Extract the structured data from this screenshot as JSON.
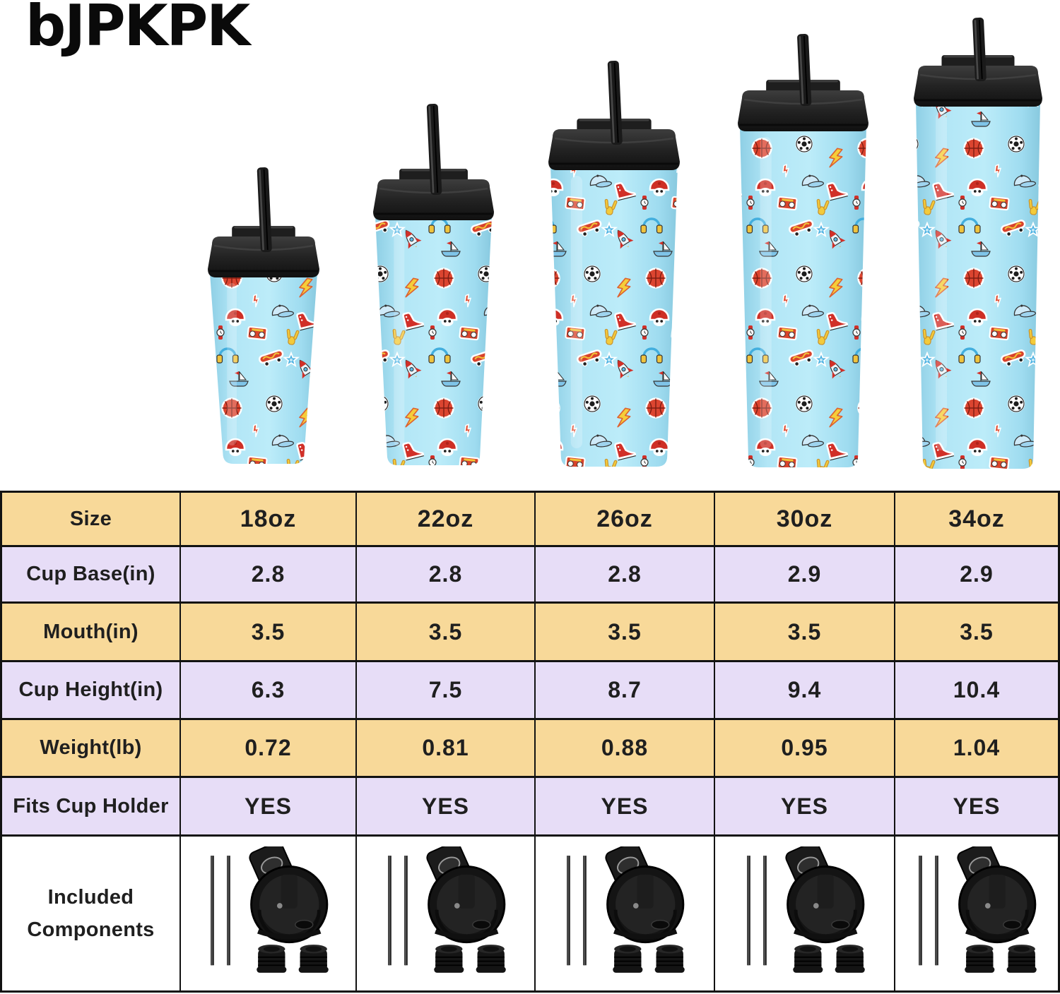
{
  "brand": {
    "logo_text": "bJPKPK"
  },
  "hero": {
    "tumblers": [
      {
        "name": "tumbler-18oz"
      },
      {
        "name": "tumbler-22oz"
      },
      {
        "name": "tumbler-26oz"
      },
      {
        "name": "tumbler-30oz"
      },
      {
        "name": "tumbler-34oz"
      }
    ],
    "colors": {
      "body_blue": "#a6e0f2",
      "lid_black": "#232323",
      "straw_black": "#1a1a1a"
    }
  },
  "spec_table": {
    "rows": [
      {
        "label": "Size",
        "values": [
          "18oz",
          "22oz",
          "26oz",
          "30oz",
          "34oz"
        ]
      },
      {
        "label": "Cup Base(in)",
        "values": [
          "2.8",
          "2.8",
          "2.8",
          "2.9",
          "2.9"
        ]
      },
      {
        "label": "Mouth(in)",
        "values": [
          "3.5",
          "3.5",
          "3.5",
          "3.5",
          "3.5"
        ]
      },
      {
        "label": "Cup Height(in)",
        "values": [
          "6.3",
          "7.5",
          "8.7",
          "9.4",
          "10.4"
        ]
      },
      {
        "label": "Weight(lb)",
        "values": [
          "0.72",
          "0.81",
          "0.88",
          "0.95",
          "1.04"
        ]
      },
      {
        "label": "Fits Cup Holder",
        "values": [
          "YES",
          "YES",
          "YES",
          "YES",
          "YES"
        ]
      }
    ],
    "included_row": {
      "label_line1": "Included",
      "label_line2": "Components",
      "icons": [
        "straws-icon",
        "flip-lid-icon",
        "stopper-icon",
        "stopper-icon"
      ]
    },
    "colors": {
      "row_tan": "#f8d999",
      "row_lavender": "#e7ddf7",
      "row_white": "#ffffff",
      "border": "#121212",
      "text": "#1f1f1f"
    }
  }
}
